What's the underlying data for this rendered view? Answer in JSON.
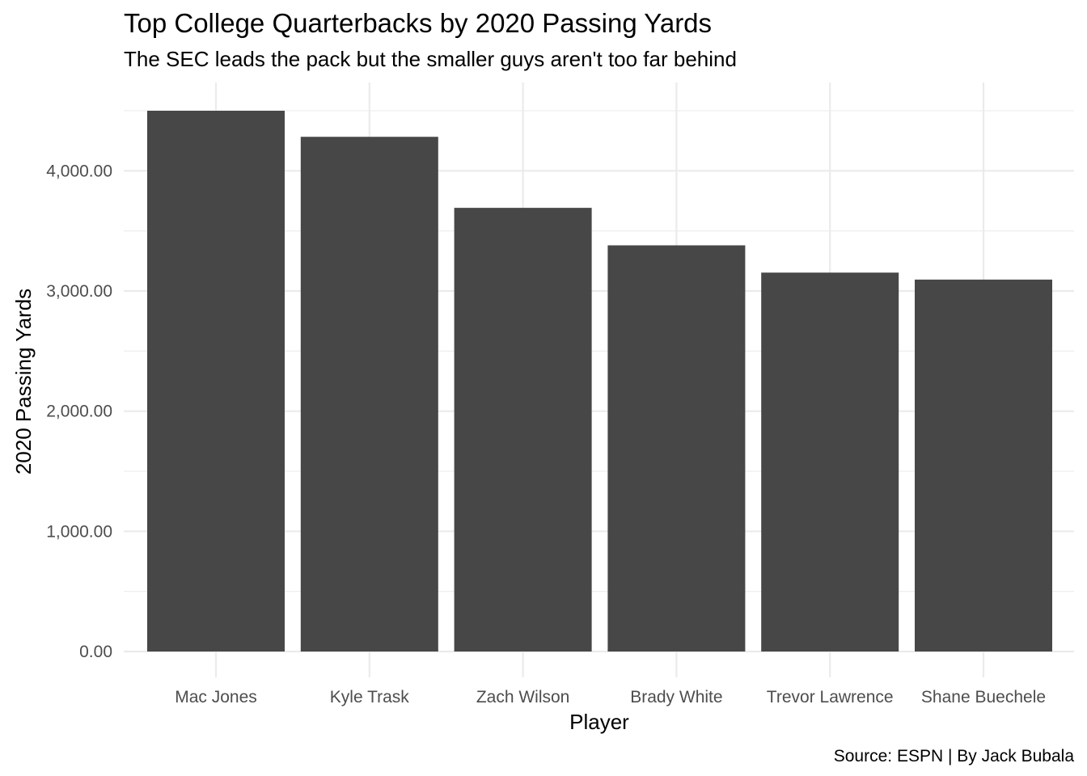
{
  "chart_data": {
    "type": "bar",
    "title": "Top College Quarterbacks by 2020 Passing Yards",
    "subtitle": "The SEC leads the pack but the smaller guys aren't too far behind",
    "xlabel": "Player",
    "ylabel": "2020 Passing Yards",
    "caption": "Source: ESPN | By Jack Bubala",
    "categories": [
      "Mac Jones",
      "Kyle Trask",
      "Zach Wilson",
      "Brady White",
      "Trevor Lawrence",
      "Shane Buechele"
    ],
    "values": [
      4500,
      4283,
      3692,
      3380,
      3153,
      3095
    ],
    "ylim": [
      0,
      4500
    ],
    "yticks": [
      0,
      1000,
      2000,
      3000,
      4000
    ],
    "ytick_labels": [
      "0.00",
      "1,000.00",
      "2,000.00",
      "3,000.00",
      "4,000.00"
    ],
    "grid": true,
    "bar_color": "#474747"
  }
}
